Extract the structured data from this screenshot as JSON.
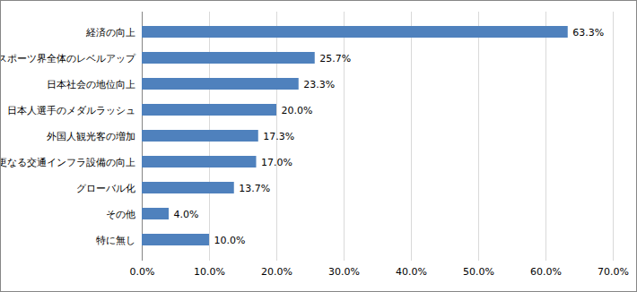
{
  "chart_data": {
    "type": "bar",
    "orientation": "horizontal",
    "categories": [
      "経済の向上",
      "スポーツ界全体のレベルアップ",
      "日本社会の地位向上",
      "日本人選手のメダルラッシュ",
      "外国人観光客の増加",
      "更なる交通インフラ設備の向上",
      "グローバル化",
      "その他",
      "特に無し"
    ],
    "values": [
      63.3,
      25.7,
      23.3,
      20.0,
      17.3,
      17.0,
      13.7,
      4.0,
      10.0
    ],
    "value_labels": [
      "63.3%",
      "25.7%",
      "23.3%",
      "20.0%",
      "17.3%",
      "17.0%",
      "13.7%",
      "4.0%",
      "10.0%"
    ],
    "data_labels": true,
    "color": "#4f81bd",
    "xlim": [
      0,
      70
    ],
    "xticks": [
      {
        "value": 0,
        "label": "0.0%"
      },
      {
        "value": 10,
        "label": "10.0%"
      },
      {
        "value": 20,
        "label": "20.0%"
      },
      {
        "value": 30,
        "label": "30.0%"
      },
      {
        "value": 40,
        "label": "40.0%"
      },
      {
        "value": 50,
        "label": "50.0%"
      },
      {
        "value": 60,
        "label": "60.0%"
      },
      {
        "value": 70,
        "label": "70.0%"
      }
    ],
    "grid": true
  }
}
